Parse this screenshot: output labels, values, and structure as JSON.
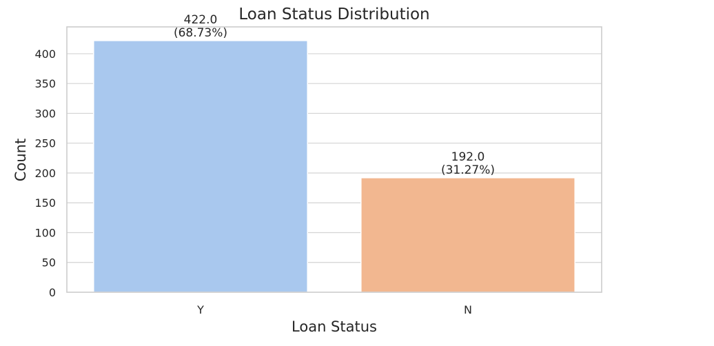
{
  "chart_data": {
    "type": "bar",
    "title": "Loan Status Distribution",
    "xlabel": "Loan Status",
    "ylabel": "Count",
    "categories": [
      "Y",
      "N"
    ],
    "values": [
      422.0,
      192.0
    ],
    "bar_labels": [
      [
        "422.0",
        "(68.73%)"
      ],
      [
        "192.0",
        "(31.27%)"
      ]
    ],
    "colors": [
      "#a9c8ee",
      "#f2b790"
    ],
    "ylim": [
      0,
      445
    ],
    "yticks": [
      0,
      50,
      100,
      150,
      200,
      250,
      300,
      350,
      400
    ],
    "grid": "horizontal"
  }
}
